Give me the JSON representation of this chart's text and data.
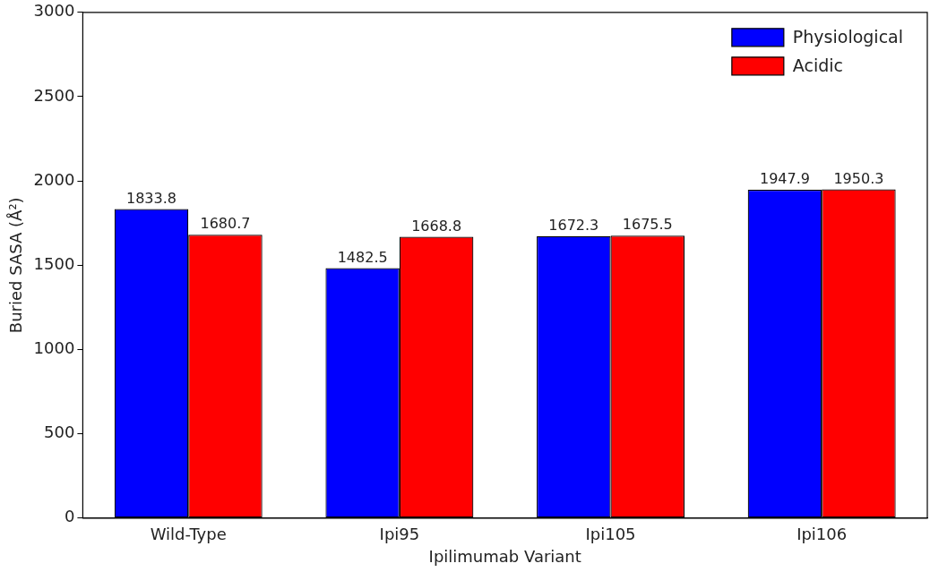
{
  "chart_data": {
    "type": "bar",
    "xlabel": "Ipilimumab Variant",
    "ylabel": "Buried SASA (Å²)",
    "categories": [
      "Wild-Type",
      "Ipi95",
      "Ipi105",
      "Ipi106"
    ],
    "series": [
      {
        "name": "Physiological",
        "color": "#0000ff",
        "values": [
          1833.8,
          1482.5,
          1672.3,
          1947.9
        ]
      },
      {
        "name": "Acidic",
        "color": "#ff0000",
        "values": [
          1680.7,
          1668.8,
          1675.5,
          1950.3
        ]
      }
    ],
    "ylim": [
      0,
      3000
    ],
    "yticks": [
      0,
      500,
      1000,
      1500,
      2000,
      2500,
      3000
    ],
    "data_labels": true,
    "legend": "top right",
    "grid": false
  }
}
